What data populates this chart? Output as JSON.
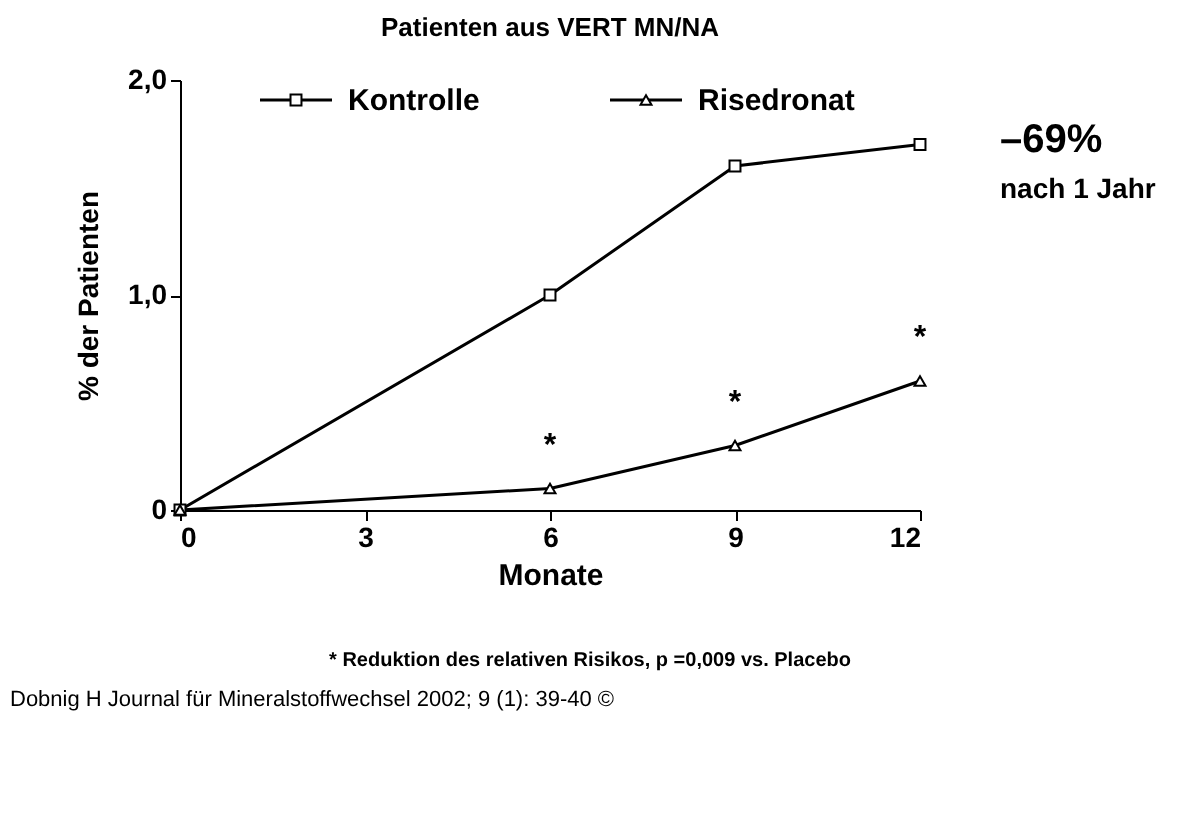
{
  "chart_data": {
    "type": "line",
    "title": "Patienten aus VERT MN/NA",
    "xlabel": "Monate",
    "ylabel": "% der Patienten",
    "x": [
      0,
      6,
      9,
      12
    ],
    "series": [
      {
        "name": "Kontrolle",
        "color": "#000000",
        "values": [
          0,
          1.0,
          1.6,
          1.7
        ],
        "marker": "square"
      },
      {
        "name": "Risedronat",
        "color": "#000000",
        "values": [
          0,
          0.1,
          0.3,
          0.6
        ],
        "marker": "triangle"
      }
    ],
    "xlim": [
      0,
      12
    ],
    "xticks": [
      0,
      3,
      6,
      9,
      12
    ],
    "ylim": [
      0,
      2
    ],
    "yticks": [
      0,
      {
        "value": 1,
        "label": "1,0"
      },
      {
        "value": 2,
        "label": "2,0"
      }
    ],
    "grid": false,
    "legend": "top",
    "line_style": "solid",
    "annotations": [
      {
        "text": "*",
        "x": 6,
        "y": 0.1
      },
      {
        "text": "*",
        "x": 9,
        "y": 0.3
      },
      {
        "text": "*",
        "x": 12,
        "y": 0.6
      },
      "–69%",
      "nach 1 Jahr",
      "* Reduktion des relativen Risikos, p =0,009 vs. Placebo",
      "Dobnig H Journal für Mineralstoffwechsel 2002; 9 (1): 39-40 ©"
    ]
  }
}
